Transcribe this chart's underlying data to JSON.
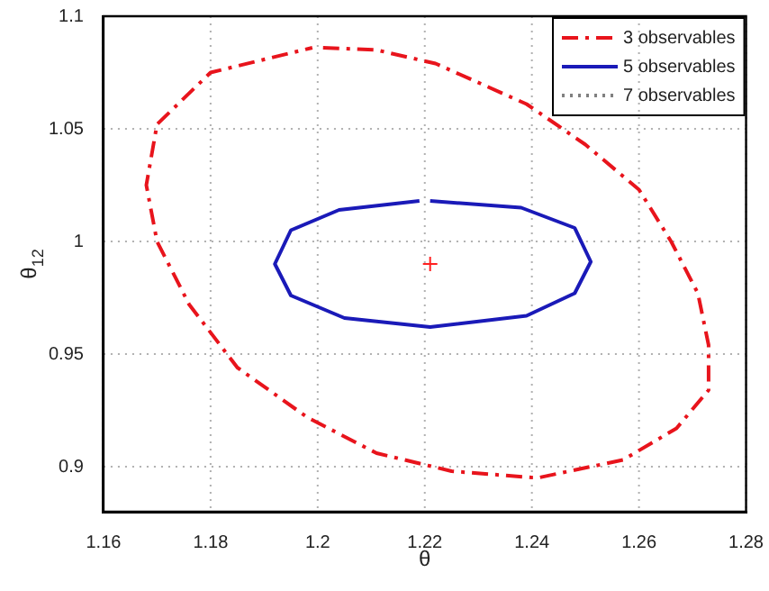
{
  "chart_data": {
    "type": "line",
    "xlabel": "θ",
    "ylabel": "θ$_{12}$",
    "xlim": [
      1.16,
      1.28
    ],
    "xticks": [
      1.16,
      1.18,
      1.2,
      1.22,
      1.24,
      1.26,
      1.28
    ],
    "ylim": [
      0.88,
      1.1
    ],
    "yticks": [
      0.9,
      0.95,
      1,
      1.05,
      1.1
    ],
    "grid": true,
    "legend": "top right",
    "series": [
      {
        "name": "3 observables",
        "type": "line",
        "line_style": "dashed",
        "color": "#e8141c",
        "x": [
          1.201,
          1.211,
          1.222,
          1.239,
          1.25,
          1.26,
          1.266,
          1.271,
          1.273,
          1.273,
          1.267,
          1.257,
          1.241,
          1.225,
          1.211,
          1.198,
          1.185,
          1.176,
          1.17,
          1.168,
          1.17,
          1.18,
          1.199
        ],
        "values": [
          1.086,
          1.085,
          1.079,
          1.061,
          1.043,
          1.023,
          1.0,
          0.977,
          0.954,
          0.934,
          0.917,
          0.903,
          0.895,
          0.898,
          0.906,
          0.922,
          0.944,
          0.972,
          1.0,
          1.025,
          1.052,
          1.075,
          1.086
        ]
      },
      {
        "name": "5 observables",
        "type": "line",
        "line_style": "solid",
        "color": "#1a1ab8",
        "x": [
          1.221,
          1.238,
          1.248,
          1.251,
          1.248,
          1.239,
          1.221,
          1.205,
          1.195,
          1.192,
          1.195,
          1.204,
          1.219
        ],
        "values": [
          1.018,
          1.015,
          1.006,
          0.991,
          0.977,
          0.967,
          0.962,
          0.966,
          0.976,
          0.99,
          1.005,
          1.014,
          1.018
        ]
      },
      {
        "name": "7 observables",
        "type": "line",
        "line_style": "dotted",
        "color": "#808080",
        "values": [
          null
        ]
      },
      {
        "type": "scatter",
        "marker": "cross",
        "color": "#ff2020",
        "x": [
          1.221
        ],
        "values": [
          0.99
        ]
      }
    ]
  }
}
